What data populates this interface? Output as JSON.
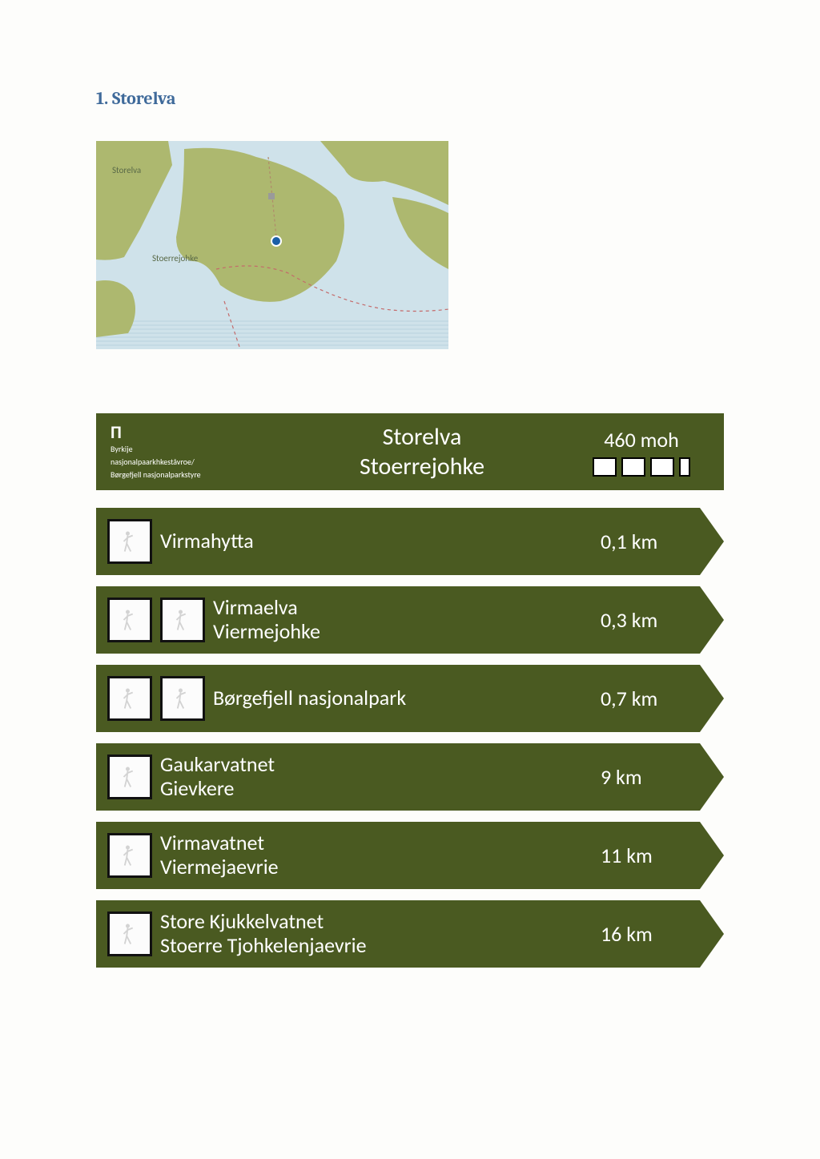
{
  "heading": "1. Storelva",
  "map": {
    "water_color": "#cfe2ea",
    "land_color": "#adb86f",
    "label_storelva": "Storelva",
    "label_stoerrejohke": "Stoerrejohke",
    "marker_color": "#1a5fa8"
  },
  "sign_color": "#4a5a21",
  "header": {
    "logo_org1": "Byrkije",
    "logo_org2": "nasjonalpaarkhkeståvroe/",
    "logo_org3": "Børgefjell nasjonalparkstyre",
    "title_line1": "Storelva",
    "title_line2": "Stoerrejohke",
    "elevation": "460 moh"
  },
  "signs": [
    {
      "icons": 1,
      "line1": "Virmahytta",
      "line2": "",
      "distance": "0,1 km"
    },
    {
      "icons": 2,
      "line1": "Virmaelva",
      "line2": "Viermejohke",
      "distance": "0,3 km"
    },
    {
      "icons": 2,
      "line1": "Børgefjell nasjonalpark",
      "line2": "",
      "distance": "0,7 km"
    },
    {
      "icons": 1,
      "line1": "Gaukarvatnet",
      "line2": "Gievkere",
      "distance": "9 km"
    },
    {
      "icons": 1,
      "line1": "Virmavatnet",
      "line2": "Viermejaevrie",
      "distance": "11 km"
    },
    {
      "icons": 1,
      "line1": "Store Kjukkelvatnet",
      "line2": "Stoerre Tjohkelenjaevrie",
      "distance": "16 km"
    }
  ]
}
